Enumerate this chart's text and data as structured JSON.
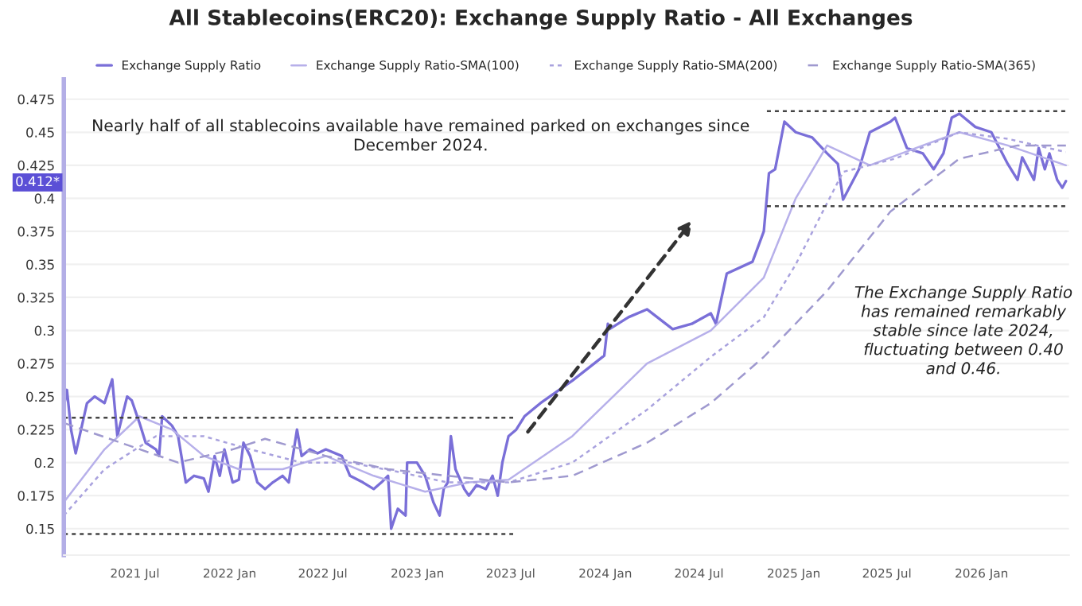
{
  "chart_data": {
    "type": "line",
    "title": "All Stablecoins(ERC20): Exchange Supply Ratio - All Exchanges",
    "series": [
      {
        "name": "Exchange Supply Ratio",
        "color": "#7a6fd8",
        "line_style": "solid",
        "x": [
          "2021-02-13",
          "2021-02-19",
          "2021-02-27",
          "2021-03-08",
          "2021-03-30",
          "2021-04-14",
          "2021-05-03",
          "2021-05-18",
          "2021-05-28",
          "2021-06-16",
          "2021-06-25",
          "2021-07-10",
          "2021-07-22",
          "2021-08-11",
          "2021-08-17",
          "2021-08-23",
          "2021-09-11",
          "2021-09-23",
          "2021-10-08",
          "2021-10-24",
          "2021-11-12",
          "2021-11-21",
          "2021-12-03",
          "2021-12-13",
          "2021-12-22",
          "2022-01-07",
          "2022-01-19",
          "2022-01-28",
          "2022-02-10",
          "2022-02-24",
          "2022-03-11",
          "2022-03-26",
          "2022-04-14",
          "2022-04-26",
          "2022-05-12",
          "2022-05-21",
          "2022-06-06",
          "2022-06-21",
          "2022-07-07",
          "2022-08-07",
          "2022-08-23",
          "2022-09-17",
          "2022-10-08",
          "2022-10-23",
          "2022-11-05",
          "2022-11-11",
          "2022-11-24",
          "2022-12-09",
          "2022-12-12",
          "2022-12-31",
          "2023-01-16",
          "2023-02-01",
          "2023-02-13",
          "2023-02-21",
          "2023-03-01",
          "2023-03-07",
          "2023-03-16",
          "2023-04-02",
          "2023-04-11",
          "2023-04-26",
          "2023-05-14",
          "2023-05-27",
          "2023-06-06",
          "2023-06-15",
          "2023-06-27",
          "2023-07-12",
          "2023-07-28",
          "2023-08-28",
          "2023-10-29",
          "2023-12-30",
          "2024-01-06",
          "2024-01-09",
          "2024-02-15",
          "2024-03-22",
          "2024-05-11",
          "2024-06-17",
          "2024-07-24",
          "2024-08-03",
          "2024-08-24",
          "2024-10-13",
          "2024-11-04",
          "2024-11-14",
          "2024-11-26",
          "2024-12-14",
          "2025-01-05",
          "2025-02-06",
          "2025-03-07",
          "2025-03-28",
          "2025-04-07",
          "2025-05-08",
          "2025-05-29",
          "2025-07-08",
          "2025-07-17",
          "2025-08-09",
          "2025-09-09",
          "2025-09-30",
          "2025-10-19",
          "2025-11-04",
          "2025-11-19",
          "2025-12-20",
          "2026-01-20",
          "2026-02-21",
          "2026-03-12",
          "2026-03-21",
          "2026-04-13",
          "2026-04-22",
          "2026-05-04",
          "2026-05-13",
          "2026-05-28",
          "2026-06-07",
          "2026-06-14"
        ],
        "values": [
          0.242,
          0.255,
          0.225,
          0.207,
          0.245,
          0.25,
          0.245,
          0.263,
          0.22,
          0.25,
          0.247,
          0.23,
          0.215,
          0.21,
          0.205,
          0.235,
          0.228,
          0.22,
          0.185,
          0.19,
          0.188,
          0.178,
          0.205,
          0.19,
          0.21,
          0.185,
          0.187,
          0.215,
          0.205,
          0.185,
          0.18,
          0.185,
          0.19,
          0.185,
          0.225,
          0.205,
          0.21,
          0.207,
          0.21,
          0.205,
          0.19,
          0.185,
          0.18,
          0.185,
          0.19,
          0.15,
          0.165,
          0.16,
          0.2,
          0.2,
          0.19,
          0.17,
          0.16,
          0.18,
          0.185,
          0.22,
          0.195,
          0.18,
          0.175,
          0.183,
          0.18,
          0.19,
          0.175,
          0.2,
          0.22,
          0.225,
          0.235,
          0.245,
          0.262,
          0.281,
          0.305,
          0.301,
          0.31,
          0.316,
          0.301,
          0.305,
          0.313,
          0.305,
          0.343,
          0.352,
          0.375,
          0.419,
          0.422,
          0.458,
          0.45,
          0.446,
          0.434,
          0.426,
          0.399,
          0.422,
          0.45,
          0.458,
          0.461,
          0.438,
          0.434,
          0.422,
          0.434,
          0.461,
          0.464,
          0.454,
          0.45,
          0.426,
          0.414,
          0.431,
          0.414,
          0.438,
          0.422,
          0.434,
          0.414,
          0.408,
          0.413
        ]
      },
      {
        "name": "Exchange Supply Ratio-SMA(100)",
        "color": "#b7b0ea",
        "line_style": "solid",
        "x": [
          "2021-02-13",
          "2021-05-03",
          "2021-07-10",
          "2021-09-11",
          "2021-11-12",
          "2022-01-19",
          "2022-04-14",
          "2022-07-07",
          "2022-10-08",
          "2023-01-16",
          "2023-04-11",
          "2023-06-27",
          "2023-10-29",
          "2024-03-22",
          "2024-07-24",
          "2024-11-04",
          "2025-01-05",
          "2025-03-07",
          "2025-05-29",
          "2025-09-09",
          "2025-11-19",
          "2026-02-21",
          "2026-06-14"
        ],
        "values": [
          0.17,
          0.21,
          0.235,
          0.225,
          0.205,
          0.195,
          0.195,
          0.205,
          0.19,
          0.178,
          0.185,
          0.187,
          0.22,
          0.275,
          0.3,
          0.34,
          0.4,
          0.44,
          0.425,
          0.44,
          0.45,
          0.44,
          0.425
        ]
      },
      {
        "name": "Exchange Supply Ratio-SMA(200)",
        "color": "#a9a2de",
        "line_style": "dotted",
        "x": [
          "2021-02-13",
          "2021-05-03",
          "2021-08-11",
          "2021-11-12",
          "2022-02-10",
          "2022-05-21",
          "2022-08-23",
          "2022-11-24",
          "2023-03-01",
          "2023-06-27",
          "2023-10-29",
          "2024-03-22",
          "2024-07-24",
          "2024-11-04",
          "2025-01-05",
          "2025-04-07",
          "2025-07-17",
          "2025-11-19",
          "2026-02-21",
          "2026-06-14"
        ],
        "values": [
          0.16,
          0.195,
          0.22,
          0.22,
          0.21,
          0.2,
          0.2,
          0.193,
          0.185,
          0.185,
          0.2,
          0.24,
          0.28,
          0.31,
          0.35,
          0.42,
          0.43,
          0.45,
          0.445,
          0.435
        ]
      },
      {
        "name": "Exchange Supply Ratio-SMA(365)",
        "color": "#9f99cf",
        "line_style": "dashed",
        "x": [
          "2021-02-13",
          "2021-09-23",
          "2022-01-07",
          "2022-03-11",
          "2022-07-07",
          "2022-11-05",
          "2023-03-01",
          "2023-06-27",
          "2023-10-29",
          "2024-03-22",
          "2024-07-24",
          "2024-11-04",
          "2025-03-07",
          "2025-07-08",
          "2025-11-19",
          "2026-03-12",
          "2026-06-14"
        ],
        "values": [
          0.23,
          0.2,
          0.21,
          0.218,
          0.205,
          0.195,
          0.19,
          0.185,
          0.19,
          0.215,
          0.245,
          0.28,
          0.33,
          0.39,
          0.43,
          0.44,
          0.44
        ]
      },
      {
        "color": "#444444",
        "line_style": "dotted",
        "x": [
          "2021-02-13",
          "2023-07-06"
        ],
        "values": [
          0.234,
          0.234
        ]
      },
      {
        "color": "#444444",
        "line_style": "dotted",
        "x": [
          "2021-02-13",
          "2023-07-06"
        ],
        "values": [
          0.146,
          0.146
        ]
      },
      {
        "color": "#444444",
        "line_style": "dotted",
        "x": [
          "2024-11-10",
          "2026-06-20"
        ],
        "values": [
          0.466,
          0.466
        ]
      },
      {
        "color": "#444444",
        "line_style": "dotted",
        "x": [
          "2024-11-10",
          "2026-06-20"
        ],
        "values": [
          0.394,
          0.394
        ]
      }
    ],
    "xlim": [
      "2021-02-13",
      "2026-06-20"
    ],
    "xticks": [
      {
        "value": "2021-07-01",
        "label": "2021 Jul"
      },
      {
        "value": "2022-01-01",
        "label": "2022 Jan"
      },
      {
        "value": "2022-07-01",
        "label": "2022 Jul"
      },
      {
        "value": "2023-01-01",
        "label": "2023 Jan"
      },
      {
        "value": "2023-07-01",
        "label": "2023 Jul"
      },
      {
        "value": "2024-01-01",
        "label": "2024 Jan"
      },
      {
        "value": "2024-07-01",
        "label": "2024 Jul"
      },
      {
        "value": "2025-01-01",
        "label": "2025 Jan"
      },
      {
        "value": "2025-07-01",
        "label": "2025 Jul"
      },
      {
        "value": "2026-01-01",
        "label": "2026 Jan"
      }
    ],
    "ylim": [
      0.13,
      0.49
    ],
    "yticks": [
      0.15,
      0.175,
      0.2,
      0.225,
      0.25,
      0.275,
      0.3,
      0.325,
      0.35,
      0.375,
      0.4,
      0.425,
      0.45,
      0.475
    ],
    "grid": "y",
    "legend": "top",
    "annotations": [
      "Nearly half of all stablecoins available have remained parked on exchanges since\nDecember 2024.",
      "The Exchange Supply Ratio\nhas remained remarkably\nstable since late 2024,\nfluctuating between 0.40\nand 0.46.",
      {
        "text": "0.412*",
        "y": 0.412
      }
    ]
  }
}
